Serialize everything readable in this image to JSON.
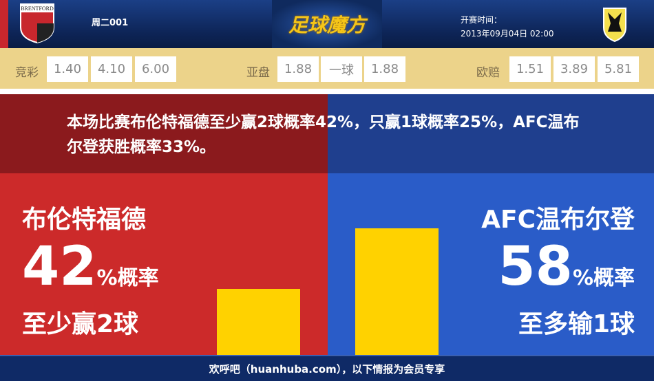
{
  "header": {
    "home_logo_text": "BRENTFORD Football Club",
    "match_code": "周二001",
    "brand": "足球魔方",
    "kickoff_label": "开赛时间：",
    "kickoff_time": "2013年09月04日 02:00",
    "away_logo_text": "AFC WIMBLEDON"
  },
  "odds": {
    "jingcai": {
      "label": "竞彩",
      "values": [
        "1.40",
        "4.10",
        "6.00"
      ]
    },
    "yapan": {
      "label": "亚盘",
      "values": [
        "1.88",
        "一球",
        "1.88"
      ]
    },
    "oupei": {
      "label": "欧赔",
      "values": [
        "1.51",
        "3.89",
        "5.81"
      ]
    }
  },
  "summary": "本场比赛布伦特福德至少赢2球概率42%，只赢1球概率25%，AFC温布尔登获胜概率33%。",
  "home": {
    "name": "布伦特福德",
    "percent": "42",
    "percent_suffix": "%概率",
    "outcome": "至少赢2球",
    "value": 42
  },
  "away": {
    "name": "AFC温布尔登",
    "percent": "58",
    "percent_suffix": "%概率",
    "outcome": "至多输1球",
    "value": 58
  },
  "colors": {
    "home": "#cc2a2a",
    "away": "#2a5cc8",
    "bar": "#ffd200",
    "odds_bg": "#ecd38a"
  },
  "footer": "欢呼吧（huanhuba.com），以下情报为会员专享"
}
